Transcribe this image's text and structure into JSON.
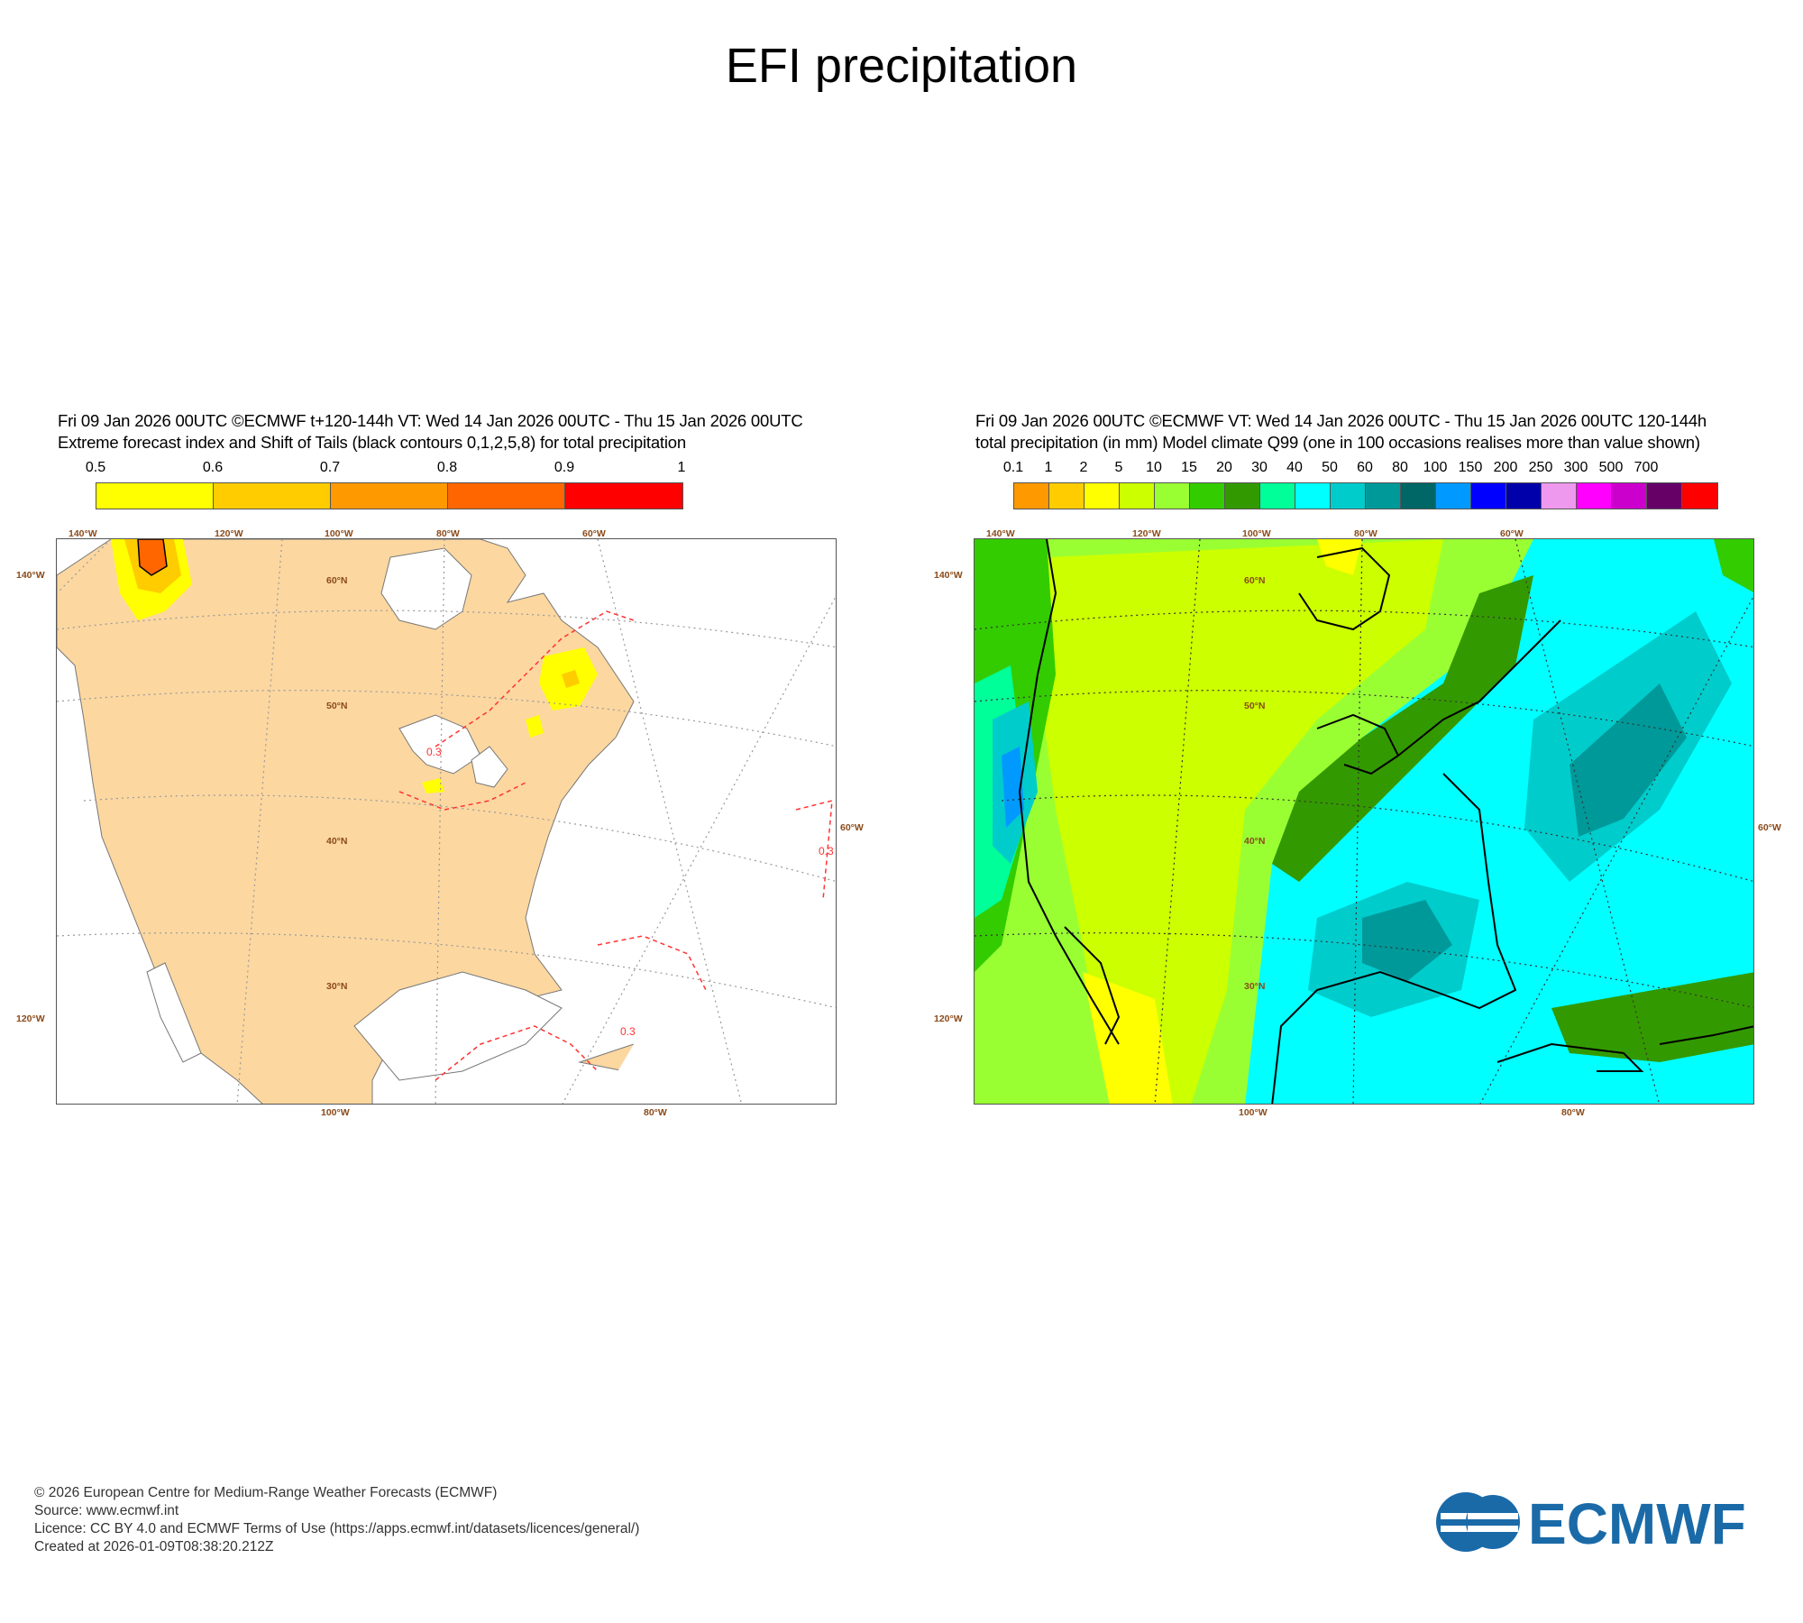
{
  "title": "EFI precipitation",
  "left_panel": {
    "header_line1": "Fri 09 Jan 2026 00UTC ©ECMWF t+120-144h  VT: Wed 14 Jan 2026 00UTC - Thu 15 Jan 2026 00UTC",
    "header_line2": "Extreme forecast index and Shift of Tails (black contours 0,1,2,5,8) for total precipitation",
    "colorbar": {
      "ticks": [
        "0.5",
        "0.6",
        "0.7",
        "0.8",
        "0.9",
        "1"
      ],
      "colors": [
        "#ffff00",
        "#ffcc00",
        "#ff9900",
        "#ff6600",
        "#ff0000"
      ]
    },
    "contour_label": "0.3",
    "background_colors": {
      "land": "#fcd7a0",
      "sea": "#ffffff"
    }
  },
  "right_panel": {
    "header_line1": "Fri 09 Jan 2026 00UTC ©ECMWF VT: Wed 14 Jan 2026 00UTC - Thu 15 Jan 2026 00UTC   120-144h",
    "header_line2": "total precipitation (in mm)  Model climate Q99 (one in 100 occasions realises more than value shown)",
    "colorbar": {
      "ticks": [
        "0.1",
        "1",
        "2",
        "5",
        "10",
        "15",
        "20",
        "30",
        "40",
        "50",
        "60",
        "80",
        "100",
        "150",
        "200",
        "250",
        "300",
        "500",
        "700"
      ],
      "colors": [
        "#ff9900",
        "#ffcc00",
        "#ffff00",
        "#ccff00",
        "#99ff33",
        "#33cc00",
        "#339900",
        "#00ff99",
        "#00ffff",
        "#00cccc",
        "#009999",
        "#006666",
        "#0099ff",
        "#0000ff",
        "#0000aa",
        "#ee99ee",
        "#ff00ff",
        "#cc00cc",
        "#660066",
        "#ff0000"
      ]
    }
  },
  "map_labels": {
    "lon_top": [
      "140°W",
      "120°W",
      "100°W",
      "80°W",
      "60°W"
    ],
    "lon_bottom": [
      "100°W",
      "80°W"
    ],
    "lat_inner": [
      "60°N",
      "50°N",
      "40°N",
      "30°N"
    ],
    "left_side": [
      "140°W",
      "120°W"
    ],
    "right_side": "60°W"
  },
  "footer": {
    "line1": "© 2026 European Centre for Medium-Range Weather Forecasts (ECMWF)",
    "line2": "Source: www.ecmwf.int",
    "line3": "Licence: CC BY 4.0 and ECMWF Terms of Use (https://apps.ecmwf.int/datasets/licences/general/)",
    "line4": "Created at 2026-01-09T08:38:20.212Z"
  },
  "logo_text": "ECMWF",
  "logo_color": "#1a6aa8"
}
